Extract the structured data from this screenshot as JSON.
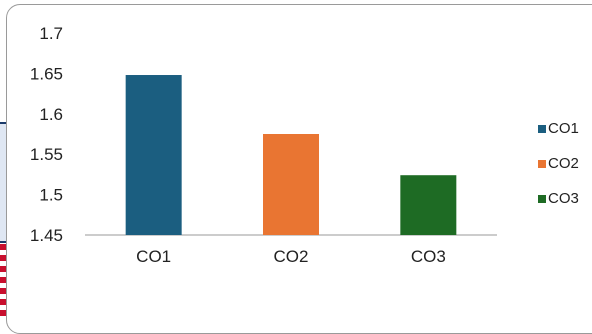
{
  "chart_data": {
    "type": "bar",
    "categories": [
      "CO1",
      "CO2",
      "CO3"
    ],
    "values": [
      1.648,
      1.575,
      1.524
    ],
    "colors": [
      "#1b5e80",
      "#e97532",
      "#1e6b24"
    ],
    "title": "",
    "xlabel": "",
    "ylabel": "",
    "ylim": [
      1.45,
      1.7
    ],
    "yticks": [
      1.45,
      1.5,
      1.55,
      1.6,
      1.65,
      1.7
    ],
    "ytick_labels": [
      "1.45",
      "1.5",
      "1.55",
      "1.6",
      "1.65",
      "1.7"
    ],
    "grid": false,
    "legend": {
      "position": "right",
      "entries": [
        {
          "label": "CO1",
          "color": "#1b5e80"
        },
        {
          "label": "CO2",
          "color": "#e97532"
        },
        {
          "label": "CO3",
          "color": "#1e6b24"
        }
      ]
    }
  }
}
